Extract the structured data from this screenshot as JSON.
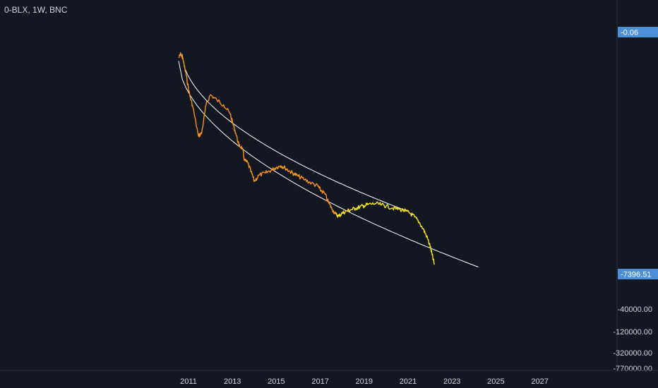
{
  "header": {
    "symbol_title": "0-BLX, 1W, BNC"
  },
  "colors": {
    "background": "#131722",
    "price_early": "#f7931a",
    "price_late": "#f5e61d",
    "channel": "#ffffff",
    "price_label_bg": "#4a90d9",
    "axis_text": "#d1d4dc"
  },
  "chart_data": {
    "type": "line",
    "title": "0-BLX, 1W, BNC",
    "xlabel": "",
    "ylabel": "",
    "grid": false,
    "x_ticks": [
      "2011",
      "2013",
      "2015",
      "2017",
      "2019",
      "2021",
      "2023",
      "2025",
      "2027"
    ],
    "y_ticks": [
      "-40000.00",
      "-120000.00",
      "-320000.00",
      "-770000.00"
    ],
    "price_labels": [
      "-0.06",
      "-7396.51"
    ],
    "series": [
      {
        "color": "#f7931a",
        "x": [
          2010.55,
          2010.65,
          2010.75,
          2010.9,
          2011.05,
          2011.2,
          2011.45,
          2011.6,
          2011.8,
          2012.0,
          2012.3,
          2012.6,
          2012.9,
          2013.0,
          2013.15,
          2013.3,
          2013.45,
          2013.55,
          2013.7,
          2013.85,
          2014.0,
          2014.2,
          2014.5,
          2014.8,
          2015.0,
          2015.2,
          2015.4,
          2015.6,
          2015.8,
          2016.0,
          2016.3,
          2016.6,
          2016.9,
          2017.0,
          2017.2,
          2017.4,
          2017.55,
          2017.7
        ],
        "y": [
          -0.08,
          -0.06,
          -0.09,
          -0.3,
          -1.2,
          -3.0,
          -25.0,
          -20.0,
          -2.5,
          -1.2,
          -1.8,
          -2.5,
          -5.0,
          -9.0,
          -20.0,
          -50.0,
          -60.0,
          -150.0,
          -180.0,
          -350.0,
          -700.0,
          -450.0,
          -380.0,
          -300.0,
          -250.0,
          -220.0,
          -260.0,
          -330.0,
          -400.0,
          -480.0,
          -620.0,
          -800.0,
          -1000.0,
          -1300.0,
          -1700.0,
          -3600.0,
          -5500.0,
          -7800.0
        ]
      },
      {
        "color": "#f5e61d",
        "x": [
          2017.7,
          2017.85,
          2018.0,
          2018.2,
          2018.4,
          2018.6,
          2018.8,
          2019.0,
          2019.2,
          2019.5,
          2019.8,
          2020.0,
          2020.3,
          2020.6,
          2020.9,
          2021.1,
          2021.3,
          2021.5,
          2021.7,
          2021.85,
          2022.0,
          2022.1,
          2022.2
        ],
        "y": [
          -7800.0,
          -9000.0,
          -7200.0,
          -6200.0,
          -5600.0,
          -5100.0,
          -4600.0,
          -4200.0,
          -3800.0,
          -3600.0,
          -3900.0,
          -4300.0,
          -5000.0,
          -5400.0,
          -6300.0,
          -7400.0,
          -9600.0,
          -14000.0,
          -24000.0,
          -40000.0,
          -80000.0,
          -160000.0,
          -320000.0
        ]
      }
    ],
    "channel_lines": [
      {
        "name": "upper",
        "from": [
          2010.7,
          -0.06
        ],
        "to": [
          2020.9,
          -6000.0
        ]
      },
      {
        "name": "lower",
        "from": [
          2010.55,
          -0.1
        ],
        "to": [
          2024.2,
          -380000.0
        ]
      }
    ]
  }
}
